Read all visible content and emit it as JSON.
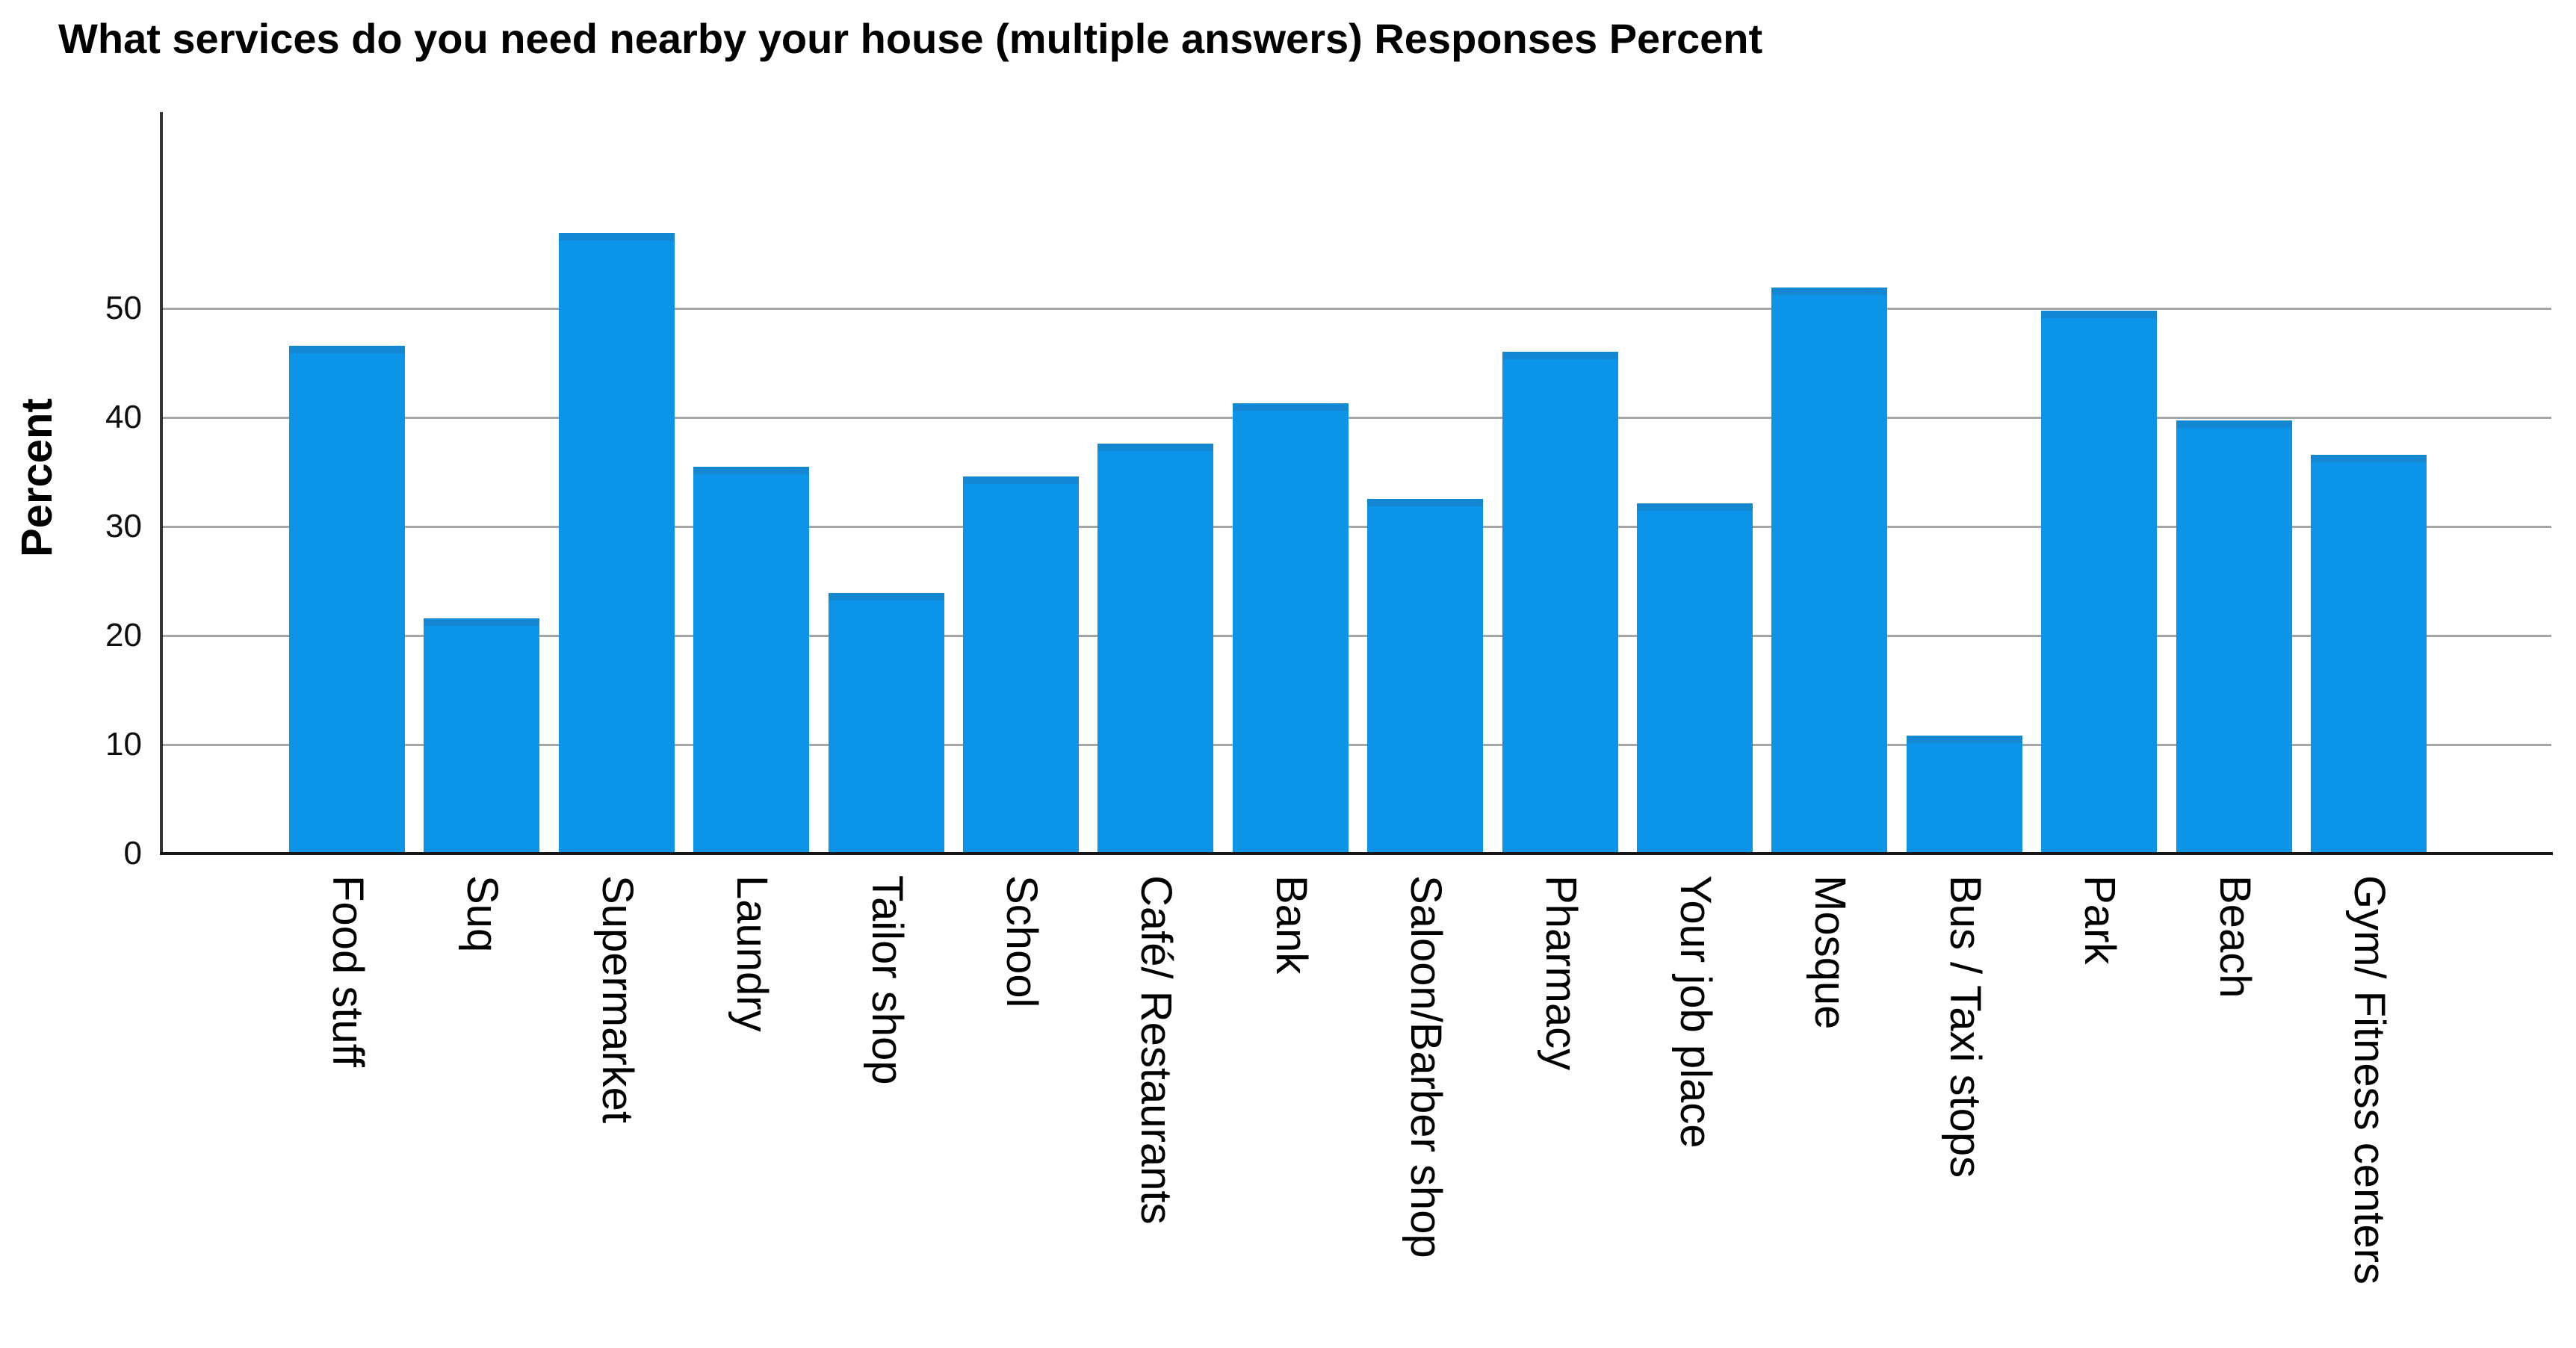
{
  "chart_data": {
    "type": "bar",
    "title": "What services do you need nearby your house (multiple answers) Responses Percent",
    "ylabel": "Percent",
    "xlabel": "",
    "categories": [
      "Food stuff",
      "Suq",
      "Supermarket",
      "Laundry",
      "Tailor shop",
      "School",
      "Café/ Restaurants",
      "Bank",
      "Saloon/Barber shop",
      "Pharmacy",
      "Your job place",
      "Mosque",
      "Bus / Taxi stops",
      "Park",
      "Beach",
      "Gym/ Fitness centers"
    ],
    "values": [
      46.6,
      21.6,
      56.9,
      35.5,
      23.9,
      34.6,
      37.6,
      41.3,
      32.5,
      46.0,
      32.1,
      51.9,
      10.8,
      49.8,
      39.7,
      36.6
    ],
    "yticks": [
      0,
      10,
      20,
      30,
      40,
      50
    ],
    "ylim": [
      0,
      67.9
    ],
    "grid": "horizontal",
    "legend": "none",
    "x_label_rotation": "vertical-top-to-bottom",
    "bar_color": "#0C94E8",
    "bar_cap_color": "#1487D2",
    "gridline_color": "#A6A6A6",
    "axis_color": "#333333",
    "baseline_color": "#161616",
    "text_color": "#000000"
  }
}
